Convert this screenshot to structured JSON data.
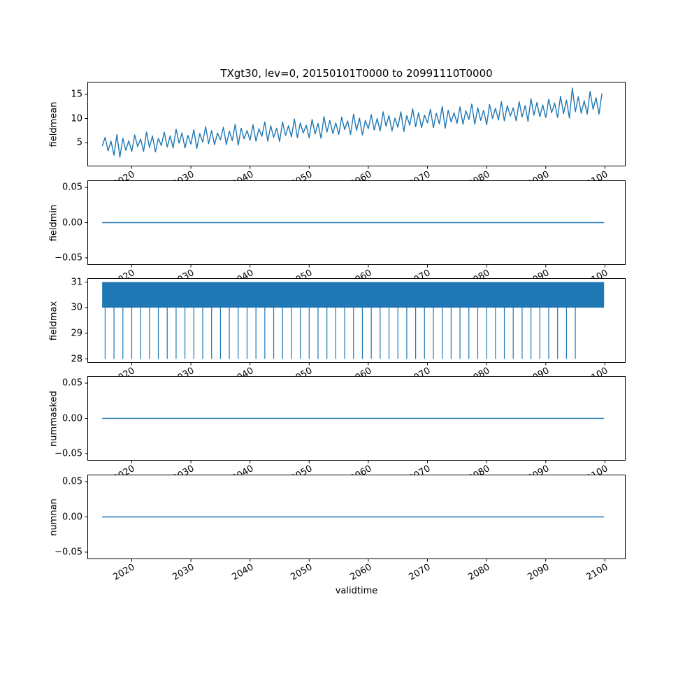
{
  "title": "TXgt30, lev=0, 20150101T0000 to 20991110T0000",
  "colors": {
    "line": "#1f77b4",
    "axes": "#000000",
    "background": "#ffffff"
  },
  "x_axis": {
    "label": "validtime",
    "ticks": [
      2020,
      2030,
      2040,
      2050,
      2060,
      2070,
      2080,
      2090,
      2100
    ],
    "tick_labels": [
      "2020",
      "2030",
      "2040",
      "2050",
      "2060",
      "2070",
      "2080",
      "2090",
      "2100"
    ],
    "range": [
      2012.5,
      2103.5
    ]
  },
  "chart_data": [
    {
      "type": "line",
      "name": "fieldmean",
      "ylabel": "fieldmean",
      "ylim": [
        0.1,
        17.6
      ],
      "yticks": [
        5,
        10,
        15
      ],
      "ytick_labels": [
        "5",
        "10",
        "15"
      ],
      "series": {
        "kind": "seasonal_zigzag",
        "x_start": 2015.0,
        "x_step": 1.0,
        "winter_lows": [
          4.3,
          3.3,
          2.4,
          2.0,
          3.4,
          3.2,
          4.2,
          3.2,
          4.0,
          3.1,
          4.4,
          4.1,
          3.9,
          4.9,
          3.9,
          4.7,
          3.8,
          5.1,
          4.8,
          4.6,
          5.6,
          4.6,
          5.4,
          4.5,
          5.8,
          5.5,
          5.3,
          6.3,
          5.3,
          6.1,
          5.2,
          6.5,
          6.2,
          6.0,
          7.0,
          6.0,
          6.8,
          5.9,
          7.2,
          6.9,
          6.7,
          7.7,
          6.7,
          7.5,
          6.6,
          7.9,
          7.6,
          7.4,
          8.4,
          7.4,
          8.2,
          7.3,
          8.6,
          8.3,
          8.1,
          9.1,
          8.1,
          8.9,
          8.0,
          9.3,
          9.0,
          8.8,
          9.8,
          8.8,
          9.6,
          8.7,
          10.0,
          9.7,
          9.5,
          10.5,
          9.5,
          10.3,
          9.4,
          10.7,
          10.4,
          10.2,
          11.2,
          10.2,
          11.0,
          10.1,
          11.4,
          11.1,
          10.9,
          11.9,
          10.9
        ],
        "summer_highs": [
          6.1,
          5.3,
          6.7,
          5.9,
          5.4,
          6.6,
          5.8,
          7.2,
          6.4,
          5.9,
          7.2,
          6.4,
          7.8,
          7.0,
          6.5,
          7.7,
          6.9,
          8.3,
          7.5,
          7.0,
          8.2,
          7.4,
          8.8,
          8.0,
          7.5,
          8.7,
          7.9,
          9.3,
          8.5,
          8.0,
          9.3,
          8.5,
          9.9,
          9.1,
          8.6,
          9.8,
          9.0,
          10.4,
          9.6,
          9.1,
          10.3,
          9.5,
          10.9,
          10.1,
          9.6,
          10.8,
          10.0,
          11.4,
          10.6,
          10.1,
          11.4,
          10.6,
          12.0,
          11.2,
          10.7,
          11.9,
          11.1,
          12.5,
          11.7,
          11.2,
          12.4,
          11.6,
          13.0,
          12.2,
          11.7,
          12.9,
          12.1,
          13.5,
          12.7,
          12.2,
          13.5,
          12.7,
          14.1,
          13.3,
          12.8,
          14.0,
          13.2,
          14.6,
          13.8,
          16.3,
          14.5,
          13.7,
          15.6,
          14.3,
          15.2
        ]
      }
    },
    {
      "type": "line",
      "name": "fieldmin",
      "ylabel": "fieldmin",
      "ylim": [
        -0.06,
        0.06
      ],
      "yticks": [
        -0.05,
        0,
        0.05
      ],
      "ytick_labels": [
        "−0.05",
        "0.00",
        "0.05"
      ],
      "series": {
        "kind": "constant",
        "value": 0.0,
        "x_range": [
          2015.0,
          2099.86
        ]
      }
    },
    {
      "type": "line",
      "name": "fieldmax",
      "ylabel": "fieldmax",
      "ylim": [
        27.85,
        31.15
      ],
      "yticks": [
        28,
        29,
        30,
        31
      ],
      "ytick_labels": [
        "28",
        "29",
        "30",
        "31"
      ],
      "series": {
        "kind": "band_with_spikes",
        "band": [
          30,
          31
        ],
        "x_range": [
          2015.0,
          2099.86
        ],
        "spike_value": 28,
        "spike_x_start": 2015.5,
        "spike_x_step": 1.5,
        "spike_count": 54
      }
    },
    {
      "type": "line",
      "name": "nummasked",
      "ylabel": "nummasked",
      "ylim": [
        -0.06,
        0.06
      ],
      "yticks": [
        -0.05,
        0,
        0.05
      ],
      "ytick_labels": [
        "−0.05",
        "0.00",
        "0.05"
      ],
      "series": {
        "kind": "constant",
        "value": 0.0,
        "x_range": [
          2015.0,
          2099.86
        ]
      }
    },
    {
      "type": "line",
      "name": "numnan",
      "ylabel": "numnan",
      "ylim": [
        -0.06,
        0.06
      ],
      "yticks": [
        -0.05,
        0,
        0.05
      ],
      "ytick_labels": [
        "−0.05",
        "0.00",
        "0.05"
      ],
      "series": {
        "kind": "constant",
        "value": 0.0,
        "x_range": [
          2015.0,
          2099.86
        ]
      }
    }
  ]
}
